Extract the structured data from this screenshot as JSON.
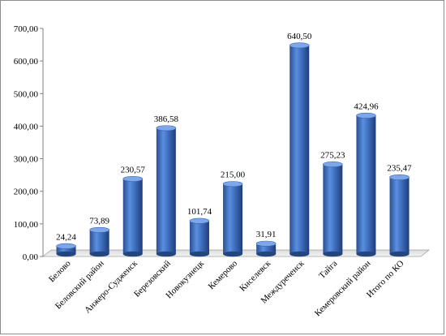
{
  "chart_data": {
    "type": "bar",
    "title": "",
    "xlabel": "",
    "ylabel": "",
    "ylim": [
      0,
      700
    ],
    "yticks": [
      "0,00",
      "100,00",
      "200,00",
      "300,00",
      "400,00",
      "500,00",
      "600,00",
      "700,00"
    ],
    "grid": false,
    "legend": "none",
    "bar_color": "#3f6fbf",
    "categories": [
      "Белово",
      "Беловский район",
      "Анжеро-Судженск",
      "Березовский",
      "Новокузнецк",
      "Кемерово",
      "Киселевск",
      "Междуреченск",
      "Тайга",
      "Кемеровский район",
      "Итого по КО"
    ],
    "values": [
      24.24,
      73.89,
      230.57,
      386.58,
      101.74,
      215.0,
      31.91,
      640.5,
      275.23,
      424.96,
      235.47
    ],
    "value_labels": [
      "24,24",
      "73,89",
      "230,57",
      "386,58",
      "101,74",
      "215,00",
      "31,91",
      "640,50",
      "275,23",
      "424,96",
      "235,47"
    ]
  }
}
